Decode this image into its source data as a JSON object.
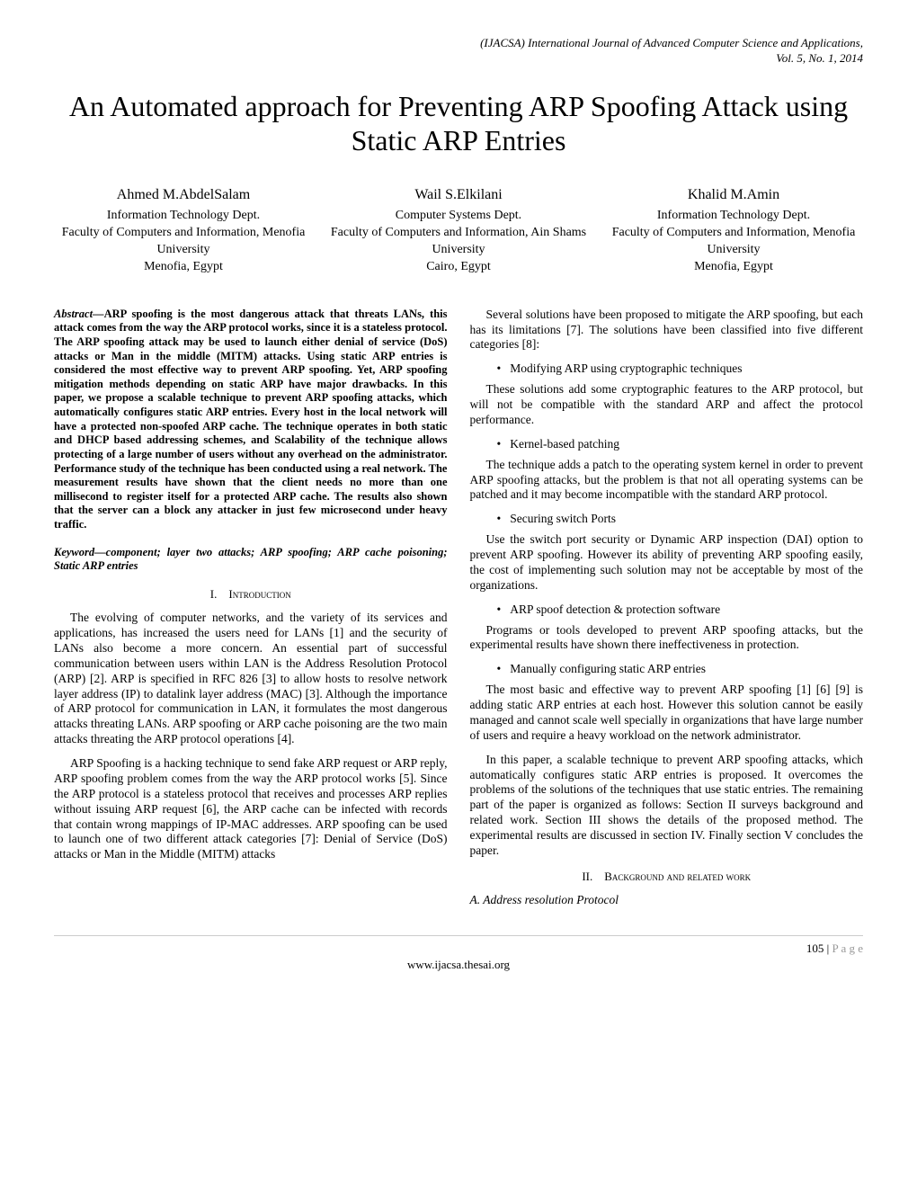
{
  "journal": {
    "line1": "(IJACSA) International Journal of Advanced Computer Science and Applications,",
    "line2": "Vol. 5, No. 1, 2014"
  },
  "title": "An Automated approach for Preventing ARP Spoofing Attack using Static ARP Entries",
  "authors": [
    {
      "name": "Ahmed M.AbdelSalam",
      "dept": "Information Technology Dept.",
      "faculty": "Faculty of Computers and Information, Menofia University",
      "location": "Menofia, Egypt"
    },
    {
      "name": "Wail S.Elkilani",
      "dept": "Computer Systems Dept.",
      "faculty": "Faculty of Computers and Information, Ain Shams University",
      "location": "Cairo, Egypt"
    },
    {
      "name": "Khalid M.Amin",
      "dept": "Information Technology Dept.",
      "faculty": "Faculty of Computers and Information, Menofia University",
      "location": "Menofia, Egypt"
    }
  ],
  "abstract": {
    "label": "Abstract—",
    "text": "ARP spoofing is the most dangerous attack that threats LANs, this attack comes from the way the ARP protocol works, since it is a stateless protocol. The ARP spoofing attack may be used to launch either denial of service (DoS) attacks or Man in the middle (MITM) attacks. Using static ARP entries is considered the most effective way to prevent ARP spoofing. Yet, ARP spoofing mitigation methods depending on static ARP have major drawbacks. In this paper, we propose a scalable technique to prevent ARP spoofing attacks, which automatically configures static ARP entries. Every host in the local network will have a protected non-spoofed ARP cache. The technique operates in both static and DHCP based addressing schemes, and Scalability of the technique allows protecting of a large number of users without any overhead on the administrator. Performance study of the technique has been conducted using a real network. The measurement results have shown that the client needs no more than one millisecond to register itself for a protected ARP cache. The results also shown that the server can a block any attacker in just few microsecond under heavy traffic."
  },
  "keywords": {
    "label": "Keyword—",
    "text": "component; layer two attacks; ARP spoofing; ARP cache poisoning; Static ARP entries"
  },
  "sections": {
    "s1": {
      "num": "I.",
      "title": "Introduction"
    },
    "s2": {
      "num": "II.",
      "title": "Background and related work"
    }
  },
  "left": {
    "p1": "The evolving of computer networks, and the variety of its services and applications, has increased the users need for LANs [1] and the security of LANs also become a more concern. An essential part of successful communication between users within LAN is the Address Resolution Protocol (ARP) [2].  ARP is specified in RFC 826 [3] to allow hosts to resolve network layer address (IP) to datalink layer address (MAC) [3]. Although the importance of ARP protocol for communication in LAN, it formulates the most dangerous attacks threating LANs.  ARP spoofing or ARP cache poisoning are the two main attacks threating the ARP protocol operations [4].",
    "p2": "ARP Spoofing is a hacking technique to send fake ARP request or ARP reply, ARP spoofing problem comes from the way the ARP protocol works [5].  Since the ARP protocol is a stateless protocol that receives and processes ARP replies without issuing ARP request [6], the ARP cache can be infected with records that contain wrong mappings of IP-MAC addresses. ARP spoofing can be used to launch one of two different attack categories [7]: Denial of Service (DoS) attacks or Man in the Middle (MITM) attacks"
  },
  "right": {
    "intro": "Several solutions have been proposed to mitigate the ARP spoofing, but each has its limitations [7].  The solutions have been classified into five different categories [8]:",
    "b1": "Modifying ARP using cryptographic techniques",
    "p1": "These solutions add some cryptographic features to the ARP protocol, but will not be compatible with the standard ARP and affect the protocol performance.",
    "b2": "Kernel-based patching",
    "p2": "The technique adds a patch to the operating system kernel in order to prevent ARP spoofing attacks, but the problem is that not all operating systems can be patched and it may become incompatible with the standard ARP protocol.",
    "b3": "Securing switch Ports",
    "p3": "Use the switch port security or Dynamic ARP inspection (DAI) option to prevent ARP spoofing. However its ability of preventing ARP spoofing easily, the cost of implementing such solution may not be acceptable by most of the organizations.",
    "b4": "ARP spoof detection & protection software",
    "p4": "Programs or tools developed to prevent ARP spoofing attacks, but the experimental results have shown there ineffectiveness in protection.",
    "b5": "Manually configuring static ARP entries",
    "p5": "The most basic and effective way to prevent ARP spoofing [1] [6] [9] is adding static ARP entries at each host. However this solution cannot be easily managed and cannot scale well specially in organizations that have large number of users and require a heavy workload on the network administrator.",
    "p6": "In this paper, a scalable technique to prevent ARP spoofing attacks, which automatically configures static ARP entries is proposed.  It overcomes the problems of the solutions of the techniques that use static entries. The remaining part of the paper is organized as follows: Section II surveys background and related work. Section III shows the details of the proposed method. The experimental results are discussed in section IV. Finally section V concludes the paper.",
    "subA": "A.  Address resolution Protocol"
  },
  "footer": {
    "page": "105 | ",
    "pageLabel": "P a g e",
    "url": "www.ijacsa.thesai.org"
  }
}
